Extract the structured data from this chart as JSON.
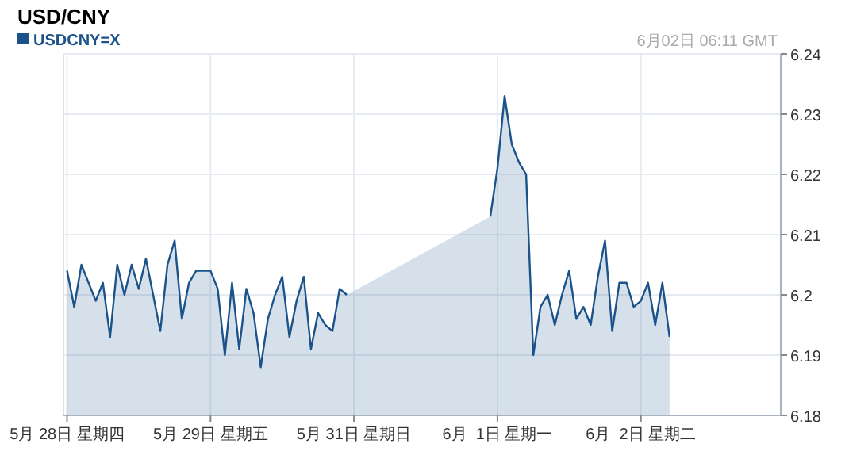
{
  "chart_data": {
    "type": "area",
    "title": "USD/CNY",
    "annotations": [
      "6月02日 06:11 GMT"
    ],
    "legend": "top left",
    "grid": true,
    "categories": [
      "5月 28日 星期四",
      null,
      null,
      null,
      null,
      null,
      null,
      null,
      null,
      null,
      null,
      null,
      null,
      null,
      null,
      null,
      null,
      null,
      null,
      null,
      "5月 29日 星期五",
      null,
      null,
      null,
      null,
      null,
      null,
      null,
      null,
      null,
      null,
      null,
      null,
      null,
      null,
      null,
      null,
      null,
      null,
      null,
      "5月 31日 星期日",
      null,
      null,
      null,
      null,
      null,
      null,
      null,
      null,
      null,
      null,
      null,
      null,
      null,
      null,
      null,
      null,
      null,
      null,
      null,
      "6月  1日 星期一",
      null,
      null,
      null,
      null,
      null,
      null,
      null,
      null,
      null,
      null,
      null,
      null,
      null,
      null,
      null,
      null,
      null,
      null,
      null,
      "6月  2日 星期二",
      null,
      null,
      null,
      null,
      null,
      null,
      null,
      null,
      null,
      null,
      null,
      null,
      null,
      null,
      null,
      null,
      null,
      null,
      null
    ],
    "ylim": [
      6.18,
      6.24
    ],
    "yticks": [
      6.18,
      6.19,
      6.2,
      6.21,
      6.22,
      6.23,
      6.24
    ],
    "series": [
      {
        "name": "USDCNY=X",
        "color": "#1a5289",
        "values": [
          6.204,
          6.198,
          6.205,
          6.202,
          6.199,
          6.202,
          6.193,
          6.205,
          6.2,
          6.205,
          6.201,
          6.206,
          6.2,
          6.194,
          6.205,
          6.209,
          6.196,
          6.202,
          6.204,
          6.204,
          6.204,
          6.201,
          6.19,
          6.202,
          6.191,
          6.201,
          6.197,
          6.188,
          6.196,
          6.2,
          6.203,
          6.193,
          6.199,
          6.203,
          6.191,
          6.197,
          6.195,
          6.194,
          6.201,
          6.2,
          null,
          null,
          null,
          null,
          null,
          null,
          null,
          null,
          null,
          null,
          null,
          null,
          null,
          null,
          null,
          null,
          null,
          null,
          null,
          6.213,
          6.221,
          6.233,
          6.225,
          6.222,
          6.22,
          6.19,
          6.198,
          6.2,
          6.195,
          6.2,
          6.204,
          6.196,
          6.198,
          6.195,
          6.203,
          6.209,
          6.194,
          6.202,
          6.202,
          6.198,
          6.199,
          6.202,
          6.195,
          6.202,
          6.193,
          null,
          null,
          null,
          null,
          null,
          null,
          null,
          null,
          null,
          null,
          null,
          null,
          null,
          null,
          null
        ]
      }
    ]
  }
}
